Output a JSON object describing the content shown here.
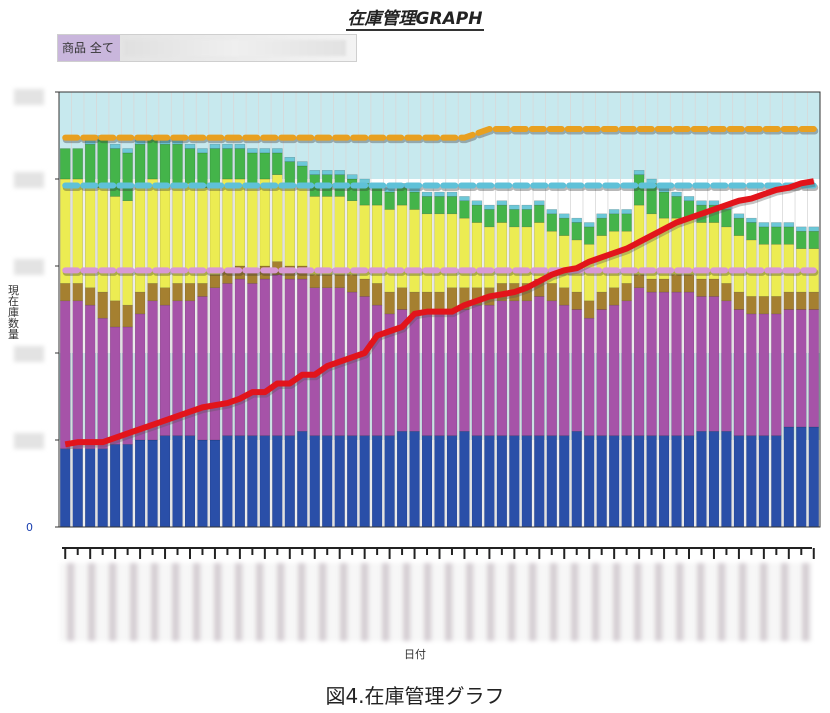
{
  "title": "在庫管理GRAPH",
  "filter": {
    "label": "商品 全て",
    "value": ""
  },
  "chart_data": {
    "type": "bar",
    "stacked": true,
    "ylabel": "現在庫数量",
    "xlabel": "日付",
    "y_tick_labels": [
      "0"
    ],
    "ylim": [
      0,
      100
    ],
    "grid": "vertical",
    "n_bars": 61,
    "series": [
      {
        "name": "",
        "color": "#2a4fa8",
        "values": [
          18,
          18,
          18,
          18,
          19,
          19,
          20,
          20,
          21,
          21,
          21,
          20,
          20,
          21,
          21,
          21,
          21,
          21,
          21,
          22,
          21,
          21,
          21,
          21,
          21,
          21,
          21,
          22,
          22,
          21,
          21,
          21,
          22,
          21,
          21,
          21,
          21,
          21,
          21,
          21,
          21,
          22,
          21,
          21,
          21,
          21,
          21,
          21,
          21,
          21,
          21,
          22,
          22,
          22,
          21,
          21,
          21,
          21,
          23,
          23,
          23
        ]
      },
      {
        "name": "",
        "color": "#a653a8",
        "values": [
          34,
          34,
          33,
          30,
          27,
          27,
          29,
          32,
          30,
          31,
          31,
          33,
          35,
          35,
          36,
          35,
          36,
          37,
          36,
          35,
          34,
          34,
          34,
          33,
          32,
          30,
          28,
          28,
          27,
          28,
          28,
          29,
          28,
          30,
          30,
          31,
          31,
          31,
          32,
          31,
          30,
          28,
          27,
          29,
          30,
          31,
          34,
          33,
          33,
          33,
          33,
          31,
          31,
          30,
          29,
          28,
          28,
          28,
          27,
          27,
          27
        ]
      },
      {
        "name": "",
        "color": "#a58030",
        "values": [
          4,
          4,
          4,
          6,
          6,
          5,
          5,
          4,
          4,
          4,
          4,
          3,
          3,
          3,
          3,
          3,
          3,
          3,
          3,
          3,
          3,
          3,
          3,
          4,
          4,
          5,
          5,
          5,
          5,
          5,
          5,
          5,
          5,
          4,
          4,
          4,
          4,
          4,
          4,
          4,
          4,
          4,
          4,
          4,
          4,
          4,
          3,
          3,
          3,
          4,
          4,
          4,
          4,
          4,
          4,
          4,
          4,
          4,
          4,
          4,
          4
        ]
      },
      {
        "name": "",
        "color": "#ecec52",
        "values": [
          24,
          24,
          24,
          24,
          24,
          24,
          24,
          24,
          24,
          23,
          23,
          22,
          21,
          21,
          20,
          20,
          20,
          20,
          19,
          18,
          18,
          18,
          18,
          17,
          17,
          18,
          19,
          19,
          19,
          18,
          18,
          17,
          16,
          15,
          14,
          14,
          13,
          13,
          13,
          12,
          12,
          12,
          13,
          13,
          13,
          12,
          16,
          15,
          14,
          13,
          13,
          13,
          13,
          13,
          13,
          13,
          12,
          12,
          11,
          10,
          10
        ]
      },
      {
        "name": "",
        "color": "#44b44a",
        "values": [
          7,
          7,
          9,
          11,
          11,
          11,
          10,
          9,
          9,
          9,
          8,
          8,
          8,
          7,
          7,
          7,
          6,
          5,
          5,
          5,
          5,
          5,
          5,
          5,
          5,
          4,
          4,
          4,
          4,
          4,
          4,
          4,
          4,
          4,
          4,
          4,
          4,
          4,
          4,
          4,
          4,
          4,
          4,
          4,
          4,
          4,
          7,
          7,
          6,
          5,
          4,
          4,
          4,
          4,
          4,
          4,
          4,
          4,
          4,
          4,
          4
        ]
      },
      {
        "name": "",
        "color": "#6cc8d8",
        "values": [
          0,
          0,
          1,
          1,
          1,
          1,
          1,
          1,
          1,
          1,
          1,
          1,
          1,
          1,
          1,
          1,
          1,
          1,
          1,
          1,
          1,
          1,
          1,
          1,
          1,
          1,
          1,
          1,
          1,
          1,
          1,
          1,
          1,
          1,
          1,
          1,
          1,
          1,
          1,
          1,
          1,
          1,
          1,
          1,
          1,
          1,
          1,
          1,
          1,
          1,
          1,
          1,
          1,
          1,
          1,
          1,
          1,
          1,
          1,
          1,
          1
        ]
      }
    ],
    "bands": [
      {
        "color": "#c7e9ee",
        "y0": 80,
        "y1": 100
      },
      {
        "color": "#c7e9ee",
        "y0": 20,
        "y1": 40
      }
    ],
    "reference_lines": [
      {
        "name": "",
        "color": "#e8a020",
        "segments": [
          [
            0,
            89.5
          ],
          [
            32,
            89.5
          ],
          [
            34,
            91.5
          ],
          [
            60,
            91.5
          ]
        ]
      },
      {
        "name": "",
        "color": "#5fc1d8",
        "segments": [
          [
            0,
            78.5
          ],
          [
            60,
            78.5
          ]
        ]
      },
      {
        "name": "",
        "color": "#d899d4",
        "segments": [
          [
            0,
            59
          ],
          [
            60,
            59
          ]
        ]
      }
    ],
    "cumulative_line": {
      "name": "",
      "color": "#e2141b",
      "values": [
        19,
        19.5,
        19.5,
        19.5,
        20.5,
        21.5,
        22.5,
        23.5,
        24.5,
        25.5,
        26.5,
        27.5,
        28,
        28.5,
        29.5,
        31,
        31,
        33,
        33,
        35,
        35,
        37,
        38,
        39,
        40,
        44,
        45,
        46,
        49,
        49.5,
        49.5,
        49.5,
        51,
        52,
        53,
        53.5,
        54,
        55,
        56.5,
        58,
        59,
        59.5,
        61,
        62,
        63,
        64,
        65.5,
        67,
        68.5,
        70,
        71,
        72,
        73,
        74,
        75,
        75.5,
        76.5,
        77.5,
        78,
        79,
        79.5
      ]
    }
  }
}
